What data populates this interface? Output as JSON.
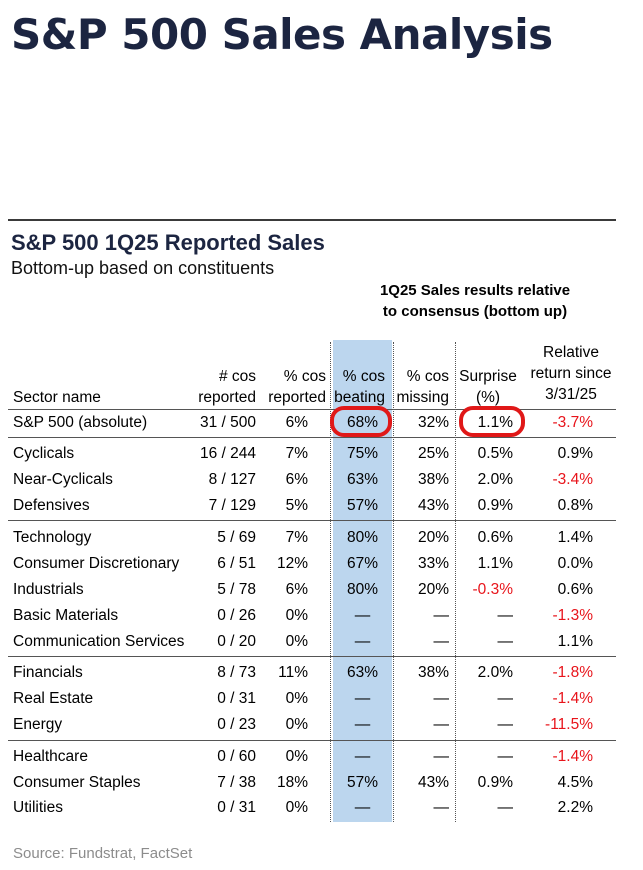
{
  "page": {
    "title": "S&P 500 Sales Analysis",
    "source": "Source: Fundstrat, FactSet"
  },
  "table": {
    "title": "S&P 500 1Q25 Reported Sales",
    "subtitle": "Bottom-up based on constituents",
    "group_header_line1": "1Q25 Sales results relative",
    "group_header_line2": "to consensus (bottom up)",
    "columns": {
      "sector": "Sector name",
      "cos_reported_l1": "# cos",
      "cos_reported_l2": "reported",
      "pct_reported_l1": "% cos",
      "pct_reported_l2": "reported",
      "pct_beating_l1": "% cos",
      "pct_beating_l2": "beating",
      "pct_missing_l1": "% cos",
      "pct_missing_l2": "missing",
      "surprise_l1": "Surprise",
      "surprise_l2": "(%)",
      "return_l1": "Relative",
      "return_l2": "return since",
      "return_l3": "3/31/25"
    },
    "rows": [
      {
        "sector": "S&P 500 (absolute)",
        "reported": "31 / 500",
        "pct_reported": "6%",
        "beating": "68%",
        "missing": "32%",
        "surprise": "1.1%",
        "ret": "-3.7%"
      },
      {
        "sector": "Cyclicals",
        "reported": "16 / 244",
        "pct_reported": "7%",
        "beating": "75%",
        "missing": "25%",
        "surprise": "0.5%",
        "ret": "0.9%"
      },
      {
        "sector": "Near-Cyclicals",
        "reported": "8 / 127",
        "pct_reported": "6%",
        "beating": "63%",
        "missing": "38%",
        "surprise": "2.0%",
        "ret": "-3.4%"
      },
      {
        "sector": "Defensives",
        "reported": "7 / 129",
        "pct_reported": "5%",
        "beating": "57%",
        "missing": "43%",
        "surprise": "0.9%",
        "ret": "0.8%"
      },
      {
        "sector": "Technology",
        "reported": "5 / 69",
        "pct_reported": "7%",
        "beating": "80%",
        "missing": "20%",
        "surprise": "0.6%",
        "ret": "1.4%"
      },
      {
        "sector": "Consumer Discretionary",
        "reported": "6 / 51",
        "pct_reported": "12%",
        "beating": "67%",
        "missing": "33%",
        "surprise": "1.1%",
        "ret": "0.0%"
      },
      {
        "sector": "Industrials",
        "reported": "5 / 78",
        "pct_reported": "6%",
        "beating": "80%",
        "missing": "20%",
        "surprise": "-0.3%",
        "ret": "0.6%"
      },
      {
        "sector": "Basic Materials",
        "reported": "0 / 26",
        "pct_reported": "0%",
        "beating": "—",
        "missing": "—",
        "surprise": "—",
        "ret": "-1.3%"
      },
      {
        "sector": "Communication Services",
        "reported": "0 / 20",
        "pct_reported": "0%",
        "beating": "—",
        "missing": "—",
        "surprise": "—",
        "ret": "1.1%"
      },
      {
        "sector": "Financials",
        "reported": "8 / 73",
        "pct_reported": "11%",
        "beating": "63%",
        "missing": "38%",
        "surprise": "2.0%",
        "ret": "-1.8%"
      },
      {
        "sector": "Real Estate",
        "reported": "0 / 31",
        "pct_reported": "0%",
        "beating": "—",
        "missing": "—",
        "surprise": "—",
        "ret": "-1.4%"
      },
      {
        "sector": "Energy",
        "reported": "0 / 23",
        "pct_reported": "0%",
        "beating": "—",
        "missing": "—",
        "surprise": "—",
        "ret": "-11.5%"
      },
      {
        "sector": "Healthcare",
        "reported": "0 / 60",
        "pct_reported": "0%",
        "beating": "—",
        "missing": "—",
        "surprise": "—",
        "ret": "-1.4%"
      },
      {
        "sector": "Consumer Staples",
        "reported": "7 / 38",
        "pct_reported": "18%",
        "beating": "57%",
        "missing": "43%",
        "surprise": "0.9%",
        "ret": "4.5%"
      },
      {
        "sector": "Utilities",
        "reported": "0 / 31",
        "pct_reported": "0%",
        "beating": "—",
        "missing": "—",
        "surprise": "—",
        "ret": "2.2%"
      }
    ],
    "highlighted_cells": [
      "S&P 500 (absolute) % cos beating",
      "S&P 500 (absolute) Surprise (%)"
    ],
    "colors": {
      "title": "#1c2541",
      "negative": "#e8141b",
      "beating_column": "#bcd6ee",
      "highlight_ring": "#e01818",
      "source": "#8c8c8c"
    }
  }
}
